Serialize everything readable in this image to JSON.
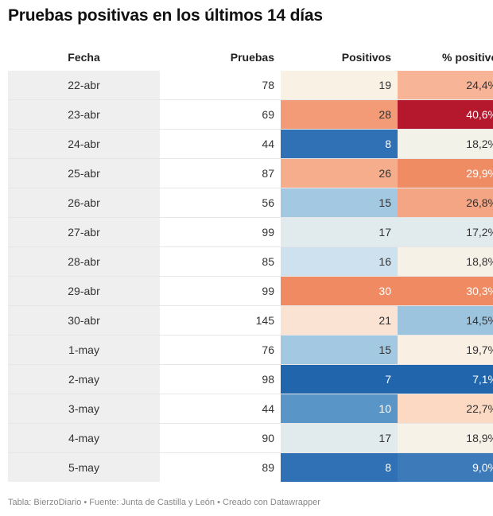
{
  "title": "Pruebas positivas en los últimos 14 días",
  "footer": "Tabla: BierzoDiario • Fuente: Junta de Castilla y León • Creado con Datawrapper",
  "chart_data": {
    "type": "table",
    "columns": [
      "Fecha",
      "Pruebas",
      "Positivos",
      "% positivo"
    ],
    "rows": [
      {
        "fecha": "22-abr",
        "pruebas": "78",
        "positivos": "19",
        "pct": "24,4%",
        "pos_color": "#f9f1e4",
        "pct_color": "#f8b497",
        "pos_text": "#333333",
        "pct_text": "#333333"
      },
      {
        "fecha": "23-abr",
        "pruebas": "69",
        "positivos": "28",
        "pct": "40,6%",
        "pos_color": "#f39b76",
        "pct_color": "#b5182c",
        "pos_text": "#333333",
        "pct_text": "#ffffff"
      },
      {
        "fecha": "24-abr",
        "pruebas": "44",
        "positivos": "8",
        "pct": "18,2%",
        "pos_color": "#3070b4",
        "pct_color": "#f2f2e9",
        "pos_text": "#ffffff",
        "pct_text": "#333333"
      },
      {
        "fecha": "25-abr",
        "pruebas": "87",
        "positivos": "26",
        "pct": "29,9%",
        "pos_color": "#f6ad8b",
        "pct_color": "#ef8c64",
        "pos_text": "#333333",
        "pct_text": "#ffffff"
      },
      {
        "fecha": "26-abr",
        "pruebas": "56",
        "positivos": "15",
        "pct": "26,8%",
        "pos_color": "#a3c8e1",
        "pct_color": "#f4a584",
        "pos_text": "#333333",
        "pct_text": "#333333"
      },
      {
        "fecha": "27-abr",
        "pruebas": "99",
        "positivos": "17",
        "pct": "17,2%",
        "pos_color": "#e1ebee",
        "pct_color": "#e1ebee",
        "pos_text": "#333333",
        "pct_text": "#333333"
      },
      {
        "fecha": "28-abr",
        "pruebas": "85",
        "positivos": "16",
        "pct": "18,8%",
        "pos_color": "#cde1ef",
        "pct_color": "#f6f1e6",
        "pos_text": "#333333",
        "pct_text": "#333333"
      },
      {
        "fecha": "29-abr",
        "pruebas": "99",
        "positivos": "30",
        "pct": "30,3%",
        "pos_color": "#ef8a62",
        "pct_color": "#ef8a62",
        "pos_text": "#ffffff",
        "pct_text": "#ffffff"
      },
      {
        "fecha": "30-abr",
        "pruebas": "145",
        "positivos": "21",
        "pct": "14,5%",
        "pos_color": "#fbe3d4",
        "pct_color": "#9cc4de",
        "pos_text": "#333333",
        "pct_text": "#333333"
      },
      {
        "fecha": "1-may",
        "pruebas": "76",
        "positivos": "15",
        "pct": "19,7%",
        "pos_color": "#a3c8e1",
        "pct_color": "#faefe3",
        "pos_text": "#333333",
        "pct_text": "#333333"
      },
      {
        "fecha": "2-may",
        "pruebas": "98",
        "positivos": "7",
        "pct": "7,1%",
        "pos_color": "#2166ac",
        "pct_color": "#2166ac",
        "pos_text": "#ffffff",
        "pct_text": "#ffffff"
      },
      {
        "fecha": "3-may",
        "pruebas": "44",
        "positivos": "10",
        "pct": "22,7%",
        "pos_color": "#5a95c7",
        "pct_color": "#fcd9c3",
        "pos_text": "#ffffff",
        "pct_text": "#333333"
      },
      {
        "fecha": "4-may",
        "pruebas": "90",
        "positivos": "17",
        "pct": "18,9%",
        "pos_color": "#e1ebee",
        "pct_color": "#f7f2e7",
        "pos_text": "#333333",
        "pct_text": "#333333"
      },
      {
        "fecha": "5-may",
        "pruebas": "89",
        "positivos": "8",
        "pct": "9,0%",
        "pos_color": "#3070b4",
        "pct_color": "#3c7ab9",
        "pos_text": "#ffffff",
        "pct_text": "#ffffff"
      }
    ]
  }
}
